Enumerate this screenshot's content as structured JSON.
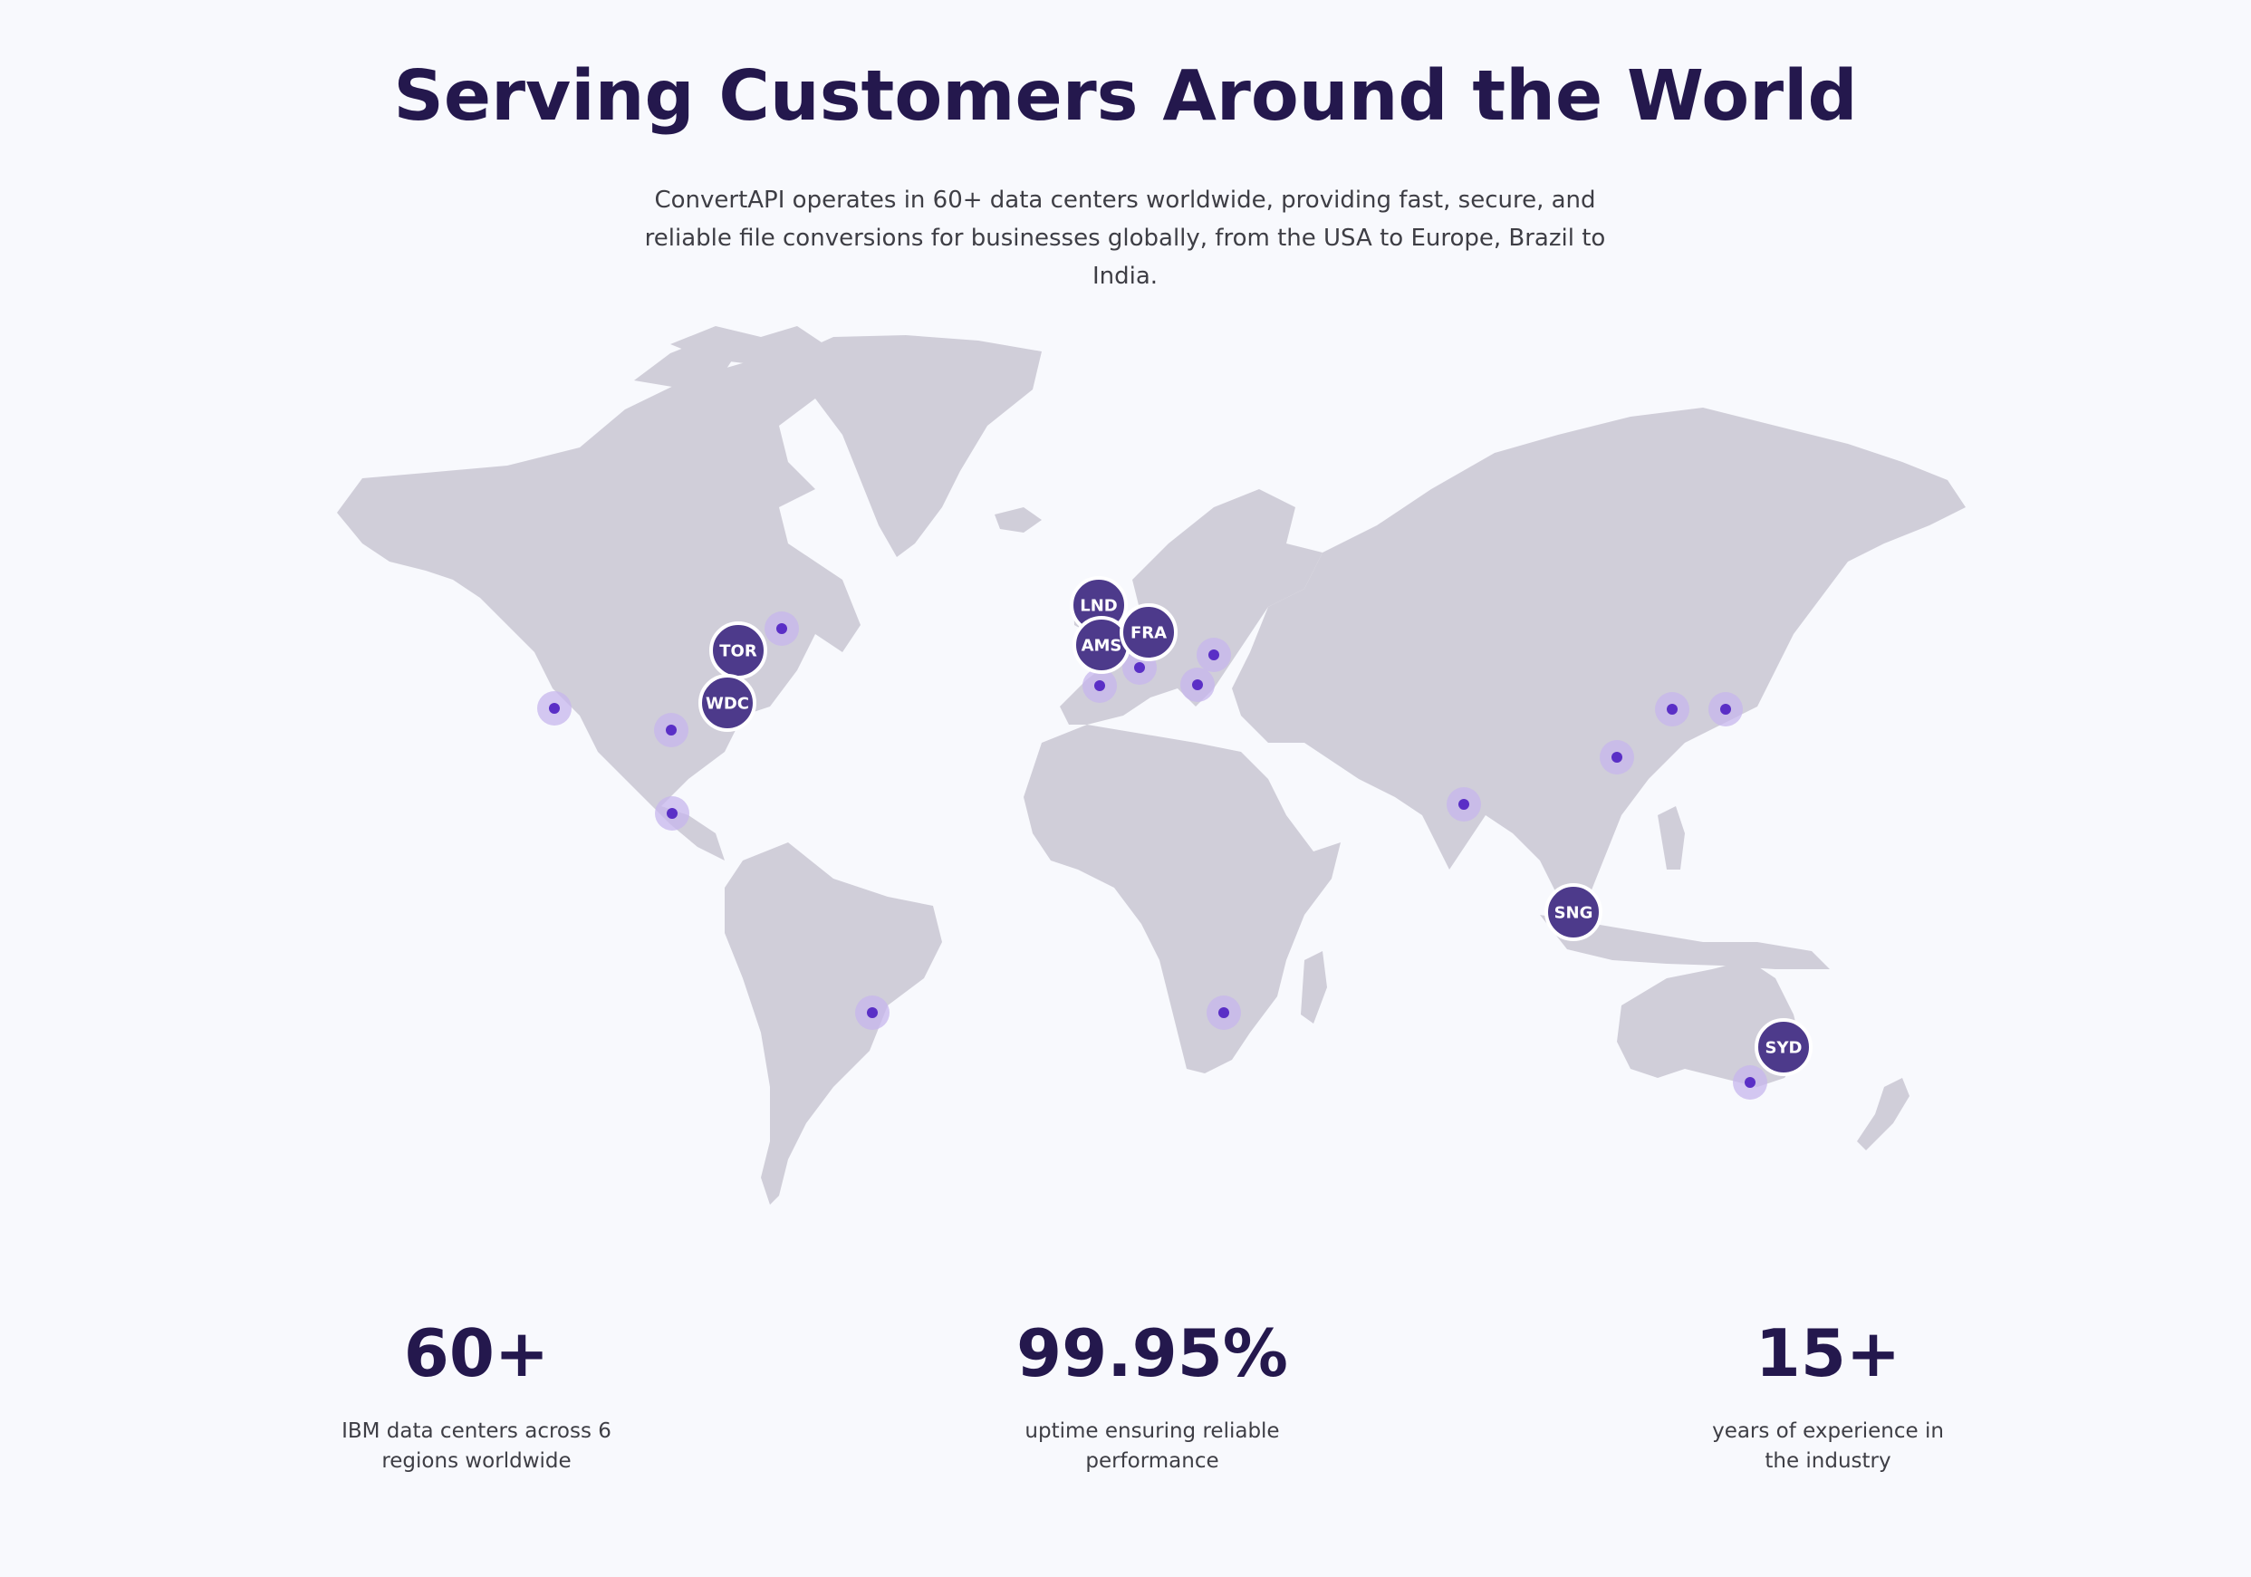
{
  "header": {
    "title": "Serving Customers Around the World",
    "subtitle": "ConvertAPI operates in 60+ data centers worldwide, providing fast, secure, and reliable file conversions for businesses globally, from the USA to Europe, Brazil to India."
  },
  "map": {
    "regions": [
      {
        "code": "TOR"
      },
      {
        "code": "WDC"
      },
      {
        "code": "LND"
      },
      {
        "code": "AMS"
      },
      {
        "code": "FRA"
      },
      {
        "code": "SNG"
      },
      {
        "code": "SYD"
      }
    ],
    "colors": {
      "land": "#d0ced9",
      "region_marker": "#4d3a8b",
      "data_center_dot": "#5a2fc6",
      "data_center_halo": "#c7b6ec"
    }
  },
  "stats": [
    {
      "value": "60+",
      "caption": "IBM data centers across 6 regions worldwide"
    },
    {
      "value": "99.95%",
      "caption": "uptime ensuring reliable performance"
    },
    {
      "value": "15+",
      "caption": "years of experience in the industry"
    }
  ],
  "colors": {
    "background": "#f8f9fd",
    "heading": "#24184d",
    "body_text": "#3e3e45"
  }
}
